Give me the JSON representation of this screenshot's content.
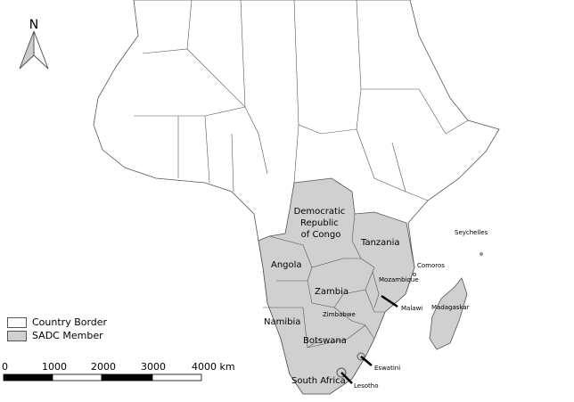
{
  "north_arrow": {
    "label": "N"
  },
  "countries": {
    "drc": "Democratic Republic of Congo",
    "tanzania": "Tanzania",
    "angola": "Angola",
    "zambia": "Zambia",
    "mozambique": "Mozambique",
    "malawi": "Malawi",
    "zimbabwe": "Zimbabwe",
    "namibia": "Namibia",
    "botswana": "Botswana",
    "south_africa": "South Africa",
    "eswatini": "Eswatini",
    "lesotho": "Lesotho",
    "madagascar": "Madagaskar",
    "comoros": "Comoros",
    "seychelles": "Seychelles"
  },
  "drc_lines": [
    "Democratic",
    "Republic",
    "of Congo"
  ],
  "legend": [
    {
      "label": "Country Border",
      "color": "#ffffff"
    },
    {
      "label": "SADC Member",
      "color": "#d0d0d0"
    }
  ],
  "scale_bar": {
    "ticks": [
      "0",
      "1000",
      "2000",
      "3000",
      "4000 km"
    ]
  },
  "colors": {
    "sadc": "#d0d0d0",
    "border": "#555555",
    "land": "#ffffff"
  }
}
